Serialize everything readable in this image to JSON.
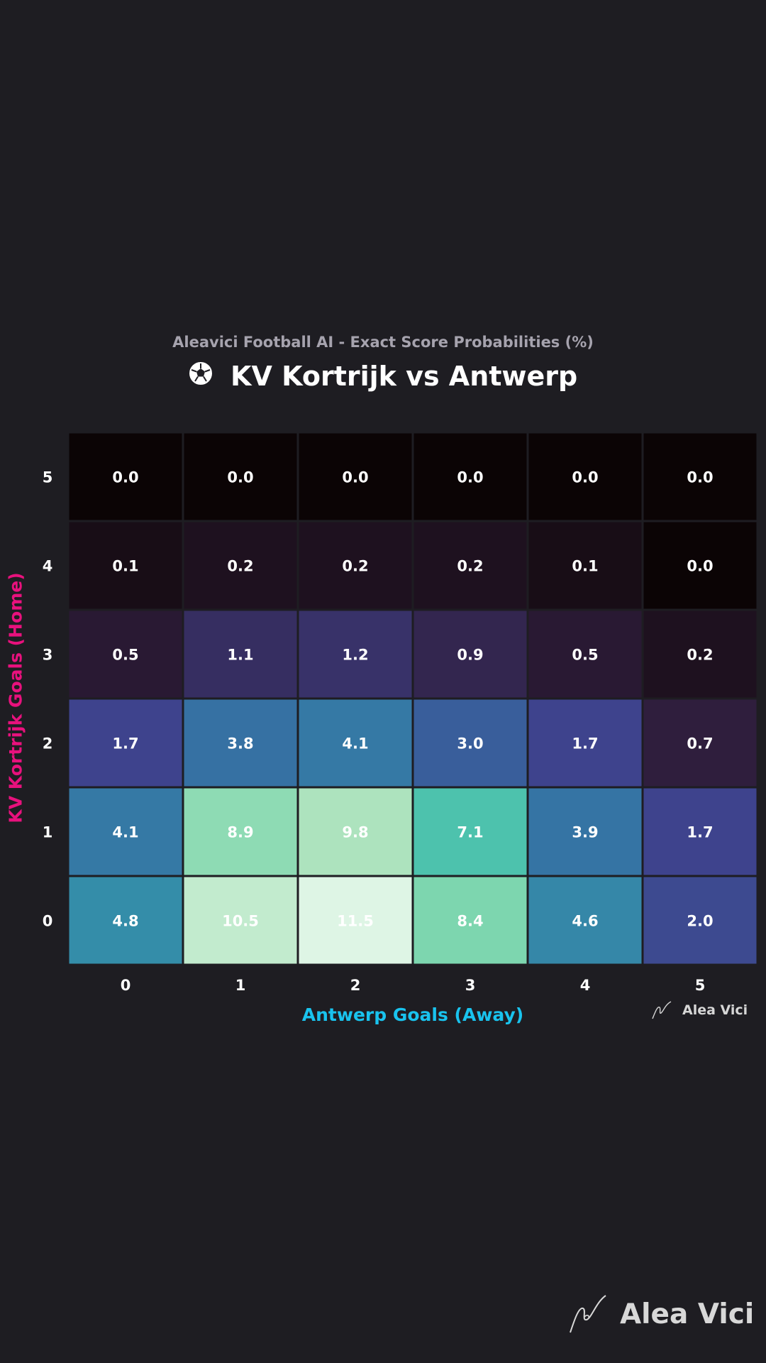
{
  "subtitle": "Aleavici Football AI - Exact Score Probabilities (%)",
  "title": "KV Kortrijk vs Antwerp",
  "title_icon": "soccer-ball-icon",
  "watermark": {
    "text": "Alea Vici",
    "icon": "signature-icon"
  },
  "colors": {
    "background": "#1e1d22",
    "ylabel": "#e8117d",
    "xlabel": "#19c3ee",
    "subtitle": "#a6a3ae",
    "colormap": "mako"
  },
  "chart_data": {
    "type": "heatmap",
    "xlabel": "Antwerp Goals (Away)",
    "ylabel": "KV Kortrijk Goals (Home)",
    "x": [
      "0",
      "1",
      "2",
      "3",
      "4",
      "5"
    ],
    "y": [
      "5",
      "4",
      "3",
      "2",
      "1",
      "0"
    ],
    "values": [
      [
        0.0,
        0.0,
        0.0,
        0.0,
        0.0,
        0.0
      ],
      [
        0.1,
        0.2,
        0.2,
        0.2,
        0.1,
        0.0
      ],
      [
        0.5,
        1.1,
        1.2,
        0.9,
        0.5,
        0.2
      ],
      [
        1.7,
        3.8,
        4.1,
        3.0,
        1.7,
        0.7
      ],
      [
        4.1,
        8.9,
        9.8,
        7.1,
        3.9,
        1.7
      ],
      [
        4.8,
        10.5,
        11.5,
        8.4,
        4.6,
        2.0
      ]
    ],
    "value_format": "0.0",
    "color_range": [
      0.0,
      11.5
    ],
    "legend": "none",
    "grid": false
  }
}
